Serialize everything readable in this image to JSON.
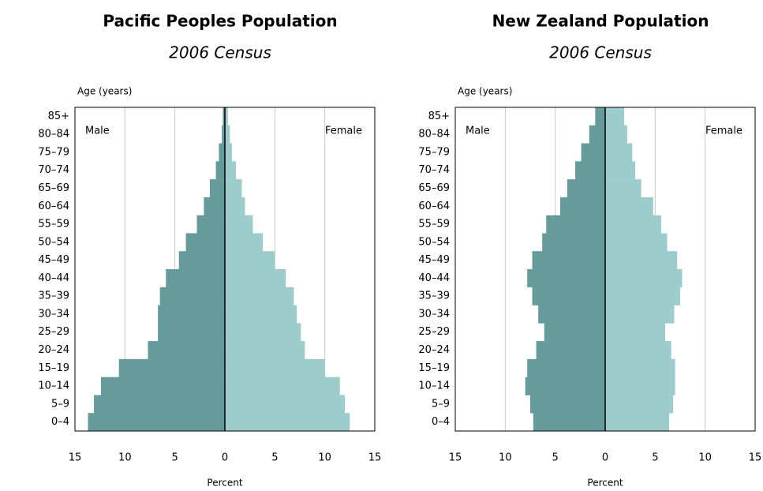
{
  "chart_data": [
    {
      "type": "pyramid",
      "title": "Pacific Peoples Population",
      "subtitle": "2006 Census",
      "y_label": "Age (years)",
      "x_label": "Percent",
      "categories": [
        "0–4",
        "5–9",
        "10–14",
        "15–19",
        "20–24",
        "25–29",
        "30–34",
        "35–39",
        "40–44",
        "45–49",
        "50–54",
        "55–59",
        "60–64",
        "65–69",
        "70–74",
        "75–79",
        "80–84",
        "85+"
      ],
      "series": [
        {
          "name": "Male",
          "side": "left",
          "color": "#669b9b",
          "values": [
            13.7,
            13.1,
            12.4,
            10.6,
            7.7,
            6.7,
            6.7,
            6.5,
            5.9,
            4.6,
            3.9,
            2.8,
            2.1,
            1.5,
            0.9,
            0.6,
            0.3,
            0.2
          ]
        },
        {
          "name": "Female",
          "side": "right",
          "color": "#9ccccc",
          "values": [
            12.5,
            12.0,
            11.5,
            10.0,
            8.0,
            7.6,
            7.2,
            6.9,
            6.1,
            5.0,
            3.8,
            2.8,
            2.0,
            1.7,
            1.1,
            0.7,
            0.5,
            0.3
          ]
        }
      ],
      "xlim": [
        -15,
        15
      ],
      "xticks": [
        {
          "value": -15,
          "label": "15"
        },
        {
          "value": -10,
          "label": "10"
        },
        {
          "value": -5,
          "label": "5"
        },
        0,
        5,
        10,
        15
      ],
      "grid": true
    },
    {
      "type": "pyramid",
      "title": "New Zealand Population",
      "subtitle": "2006 Census",
      "y_label": "Age (years)",
      "x_label": "Percent",
      "categories": [
        "0–4",
        "5–9",
        "10–14",
        "15–19",
        "20–24",
        "25–29",
        "30–34",
        "35–39",
        "40–44",
        "45–49",
        "50–54",
        "55–59",
        "60–64",
        "65–69",
        "70–74",
        "75–79",
        "80–84",
        "85+"
      ],
      "series": [
        {
          "name": "Male",
          "side": "left",
          "color": "#669b9b",
          "values": [
            7.2,
            7.5,
            8.0,
            7.8,
            6.9,
            6.1,
            6.7,
            7.3,
            7.8,
            7.3,
            6.3,
            5.9,
            4.5,
            3.8,
            3.0,
            2.4,
            1.6,
            1.0
          ]
        },
        {
          "name": "Female",
          "side": "right",
          "color": "#9ccccc",
          "values": [
            6.4,
            6.8,
            7.0,
            7.0,
            6.6,
            6.0,
            6.9,
            7.5,
            7.7,
            7.2,
            6.2,
            5.6,
            4.8,
            3.6,
            3.0,
            2.7,
            2.2,
            1.9
          ]
        }
      ],
      "xlim": [
        -15,
        15
      ],
      "xticks": [
        {
          "value": -15,
          "label": "15"
        },
        {
          "value": -10,
          "label": "10"
        },
        {
          "value": -5,
          "label": "5"
        },
        0,
        5,
        10,
        15
      ],
      "grid": true
    }
  ]
}
